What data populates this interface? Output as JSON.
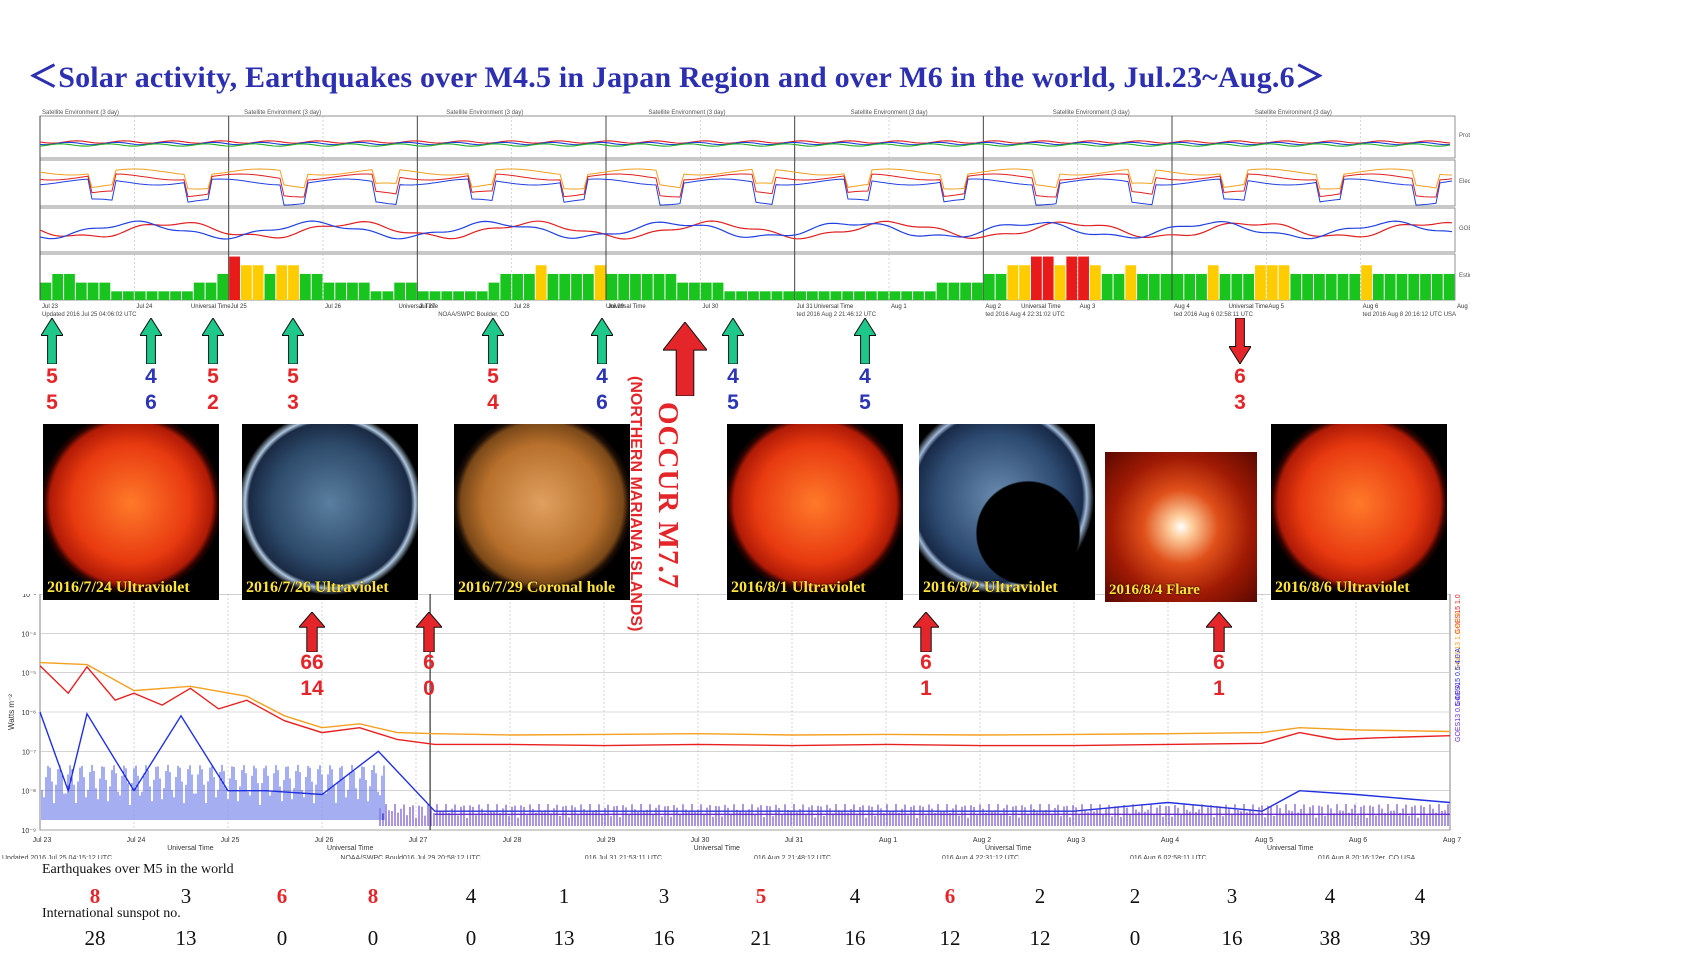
{
  "title": "＜Solar activity, Earthquakes over M4.5 in Japan Region and over M6 in the world, Jul.23~Aug.6＞",
  "chart_data": [
    {
      "type": "line",
      "panel": "GOES satellite environment (3 day) composite",
      "header_labels": [
        "Satellite Environment (3 day)",
        "Satellite Environment (3 day)",
        "Satellite Environment (3 day)",
        "Satellite Environment (3 day)",
        "Satellite Environment (3 day)",
        "Satellite Environment (3 day)",
        "Satellite Environment (3 day)"
      ],
      "right_labels": [
        "Proton Flux",
        "Electron Flux",
        "GOES Hp",
        "Estimated Kp"
      ],
      "x_ticks": [
        "Jul 23",
        "Jul 24",
        "Jul 25",
        "Jul 26",
        "Jul 27",
        "Jul 28",
        "Jul 29",
        "Jul 30",
        "Jul 31",
        "Aug 1",
        "Aug 2",
        "Aug 3",
        "Aug 4",
        "Aug 5",
        "Aug 6",
        "Aug 7"
      ],
      "axis_text": [
        "Universal Time",
        "Universal Time",
        "Universal Time",
        "Universal Time",
        "Universal Time",
        "Universal Time"
      ],
      "updated_labels": [
        "Updated 2016 Jul 25 04:06:02 UTC",
        "NOAA/SWPC Boulder, CO",
        "ted 2016 Aug  2 21:46:12 UTC",
        "ted 2016 Aug  4 22:31:02 UTC",
        "ted 2016 Aug  6 02:58:11 UTC",
        "ted 2016 Aug  8 20:16:12 UTC USA"
      ],
      "kp_index": {
        "x_start": "Jul 23",
        "interval_hours": 3,
        "values": [
          2,
          3,
          3,
          2,
          2,
          2,
          1,
          1,
          1,
          1,
          1,
          1,
          1,
          2,
          2,
          3,
          5,
          4,
          4,
          3,
          4,
          4,
          3,
          3,
          2,
          2,
          2,
          2,
          1,
          1,
          2,
          2,
          1,
          1,
          1,
          1,
          1,
          1,
          2,
          3,
          3,
          3,
          4,
          3,
          3,
          3,
          3,
          4,
          3,
          3,
          3,
          3,
          3,
          3,
          2,
          2,
          2,
          2,
          1,
          1,
          1,
          1,
          1,
          1,
          1,
          1,
          1,
          1,
          1,
          1,
          1,
          1,
          1,
          1,
          1,
          1,
          2,
          2,
          2,
          2,
          3,
          3,
          4,
          4,
          5,
          5,
          4,
          5,
          5,
          4,
          3,
          3,
          4,
          3,
          3,
          3,
          3,
          3,
          3,
          4,
          3,
          3,
          3,
          4,
          4,
          4,
          3,
          3,
          3,
          3,
          3,
          3,
          4,
          3,
          3,
          3,
          3,
          3,
          3,
          3
        ]
      },
      "kp_colors": {
        "quiet": "#19c41e",
        "active": "#ffcc00",
        "storm": "#e81a1a"
      }
    },
    {
      "type": "line",
      "panel": "GOES Xray Flux (1-minute data)",
      "ylabel": "Watts m⁻²",
      "y_scale": "log",
      "ylim": [
        1e-09,
        0.001
      ],
      "y_ticks": [
        "10⁻³",
        "10⁻⁴",
        "10⁻⁵",
        "10⁻⁶",
        "10⁻⁷",
        "10⁻⁸",
        "10⁻⁹"
      ],
      "x_ticks": [
        "Jul 23",
        "Jul 24",
        "Jul 25",
        "Jul 26",
        "Jul 27",
        "Jul 28",
        "Jul 29",
        "Jul 30",
        "Jul 31",
        "Aug 1",
        "Aug 2",
        "Aug 3",
        "Aug 4",
        "Aug 5",
        "Aug 6",
        "Aug 7"
      ],
      "axis_text": [
        "Universal Time",
        "Universal Time",
        "Universal Time",
        "Universal Time",
        "Universal Time"
      ],
      "updated_labels": [
        "Updated 2016 Jul 25 04:15:12 UTC",
        "NOAA/SWPC Bould016 Jul 29 20:58:12 UTC",
        "016 Jul 31 21:53:11 UTC",
        "016 Aug  2 21:48:12 UTC",
        "016 Aug  4 22:31:12 UTC",
        "016 Aug  6 02:58:11 UTC",
        "016 Aug  8 20:16:12er, CO USA"
      ],
      "series": [
        {
          "name": "GOES15 1.0-8.0 A",
          "color": "#e82020",
          "x_days": [
            0,
            0.3,
            0.5,
            0.8,
            1.0,
            1.3,
            1.6,
            1.9,
            2.2,
            2.6,
            3.0,
            3.4,
            3.8,
            4.2,
            5,
            6,
            7,
            8,
            9,
            10,
            11,
            12,
            13,
            13.4,
            13.8,
            14.2,
            15
          ],
          "y": [
            1.5e-05,
            3e-06,
            1.4e-05,
            2e-06,
            3e-06,
            1.5e-06,
            4e-06,
            1.2e-06,
            2e-06,
            6e-07,
            3e-07,
            4e-07,
            2e-07,
            1.5e-07,
            1.5e-07,
            1.4e-07,
            1.5e-07,
            1.4e-07,
            1.5e-07,
            1.4e-07,
            1.4e-07,
            1.5e-07,
            1.6e-07,
            3e-07,
            2e-07,
            2.2e-07,
            2.5e-07
          ]
        },
        {
          "name": "GOES13 1.0-8.0 A",
          "color": "#f4a020",
          "x_days": [
            0,
            0.5,
            1.0,
            1.6,
            2.2,
            2.6,
            3.0,
            3.4,
            3.8,
            4.2,
            5,
            6,
            7,
            8,
            9,
            10,
            11,
            12,
            13,
            13.4,
            14,
            15
          ],
          "y": [
            1.8e-05,
            1.6e-05,
            3.5e-06,
            4.5e-06,
            2.5e-06,
            8e-07,
            4e-07,
            5e-07,
            3e-07,
            2.8e-07,
            2.6e-07,
            2.7e-07,
            2.8e-07,
            2.6e-07,
            2.7e-07,
            2.6e-07,
            2.7e-07,
            2.8e-07,
            3e-07,
            4e-07,
            3.5e-07,
            3.2e-07
          ]
        },
        {
          "name": "GOES15 0.5-4.0 A",
          "color": "#2030e0",
          "x_days": [
            0,
            0.3,
            0.5,
            1.0,
            1.5,
            2.0,
            2.4,
            3.0,
            3.6,
            4.2,
            5,
            6,
            7,
            8,
            9,
            10,
            11,
            12,
            13,
            13.4,
            14,
            15
          ],
          "y": [
            1e-06,
            1e-08,
            9e-07,
            1e-08,
            8e-07,
            1e-08,
            1e-08,
            8e-09,
            1e-07,
            3e-09,
            3e-09,
            3e-09,
            3e-09,
            3e-09,
            3e-09,
            3e-09,
            3e-09,
            5e-09,
            3e-09,
            1e-08,
            8e-09,
            5e-09
          ]
        },
        {
          "name": "GOES13 0.5-4.0 A",
          "color": "#6a2ad8",
          "x_days": [
            4.2,
            5,
            6,
            7,
            8,
            9,
            10,
            11,
            12,
            13,
            14,
            15
          ],
          "y": [
            2.5e-09,
            2.5e-09,
            2.5e-09,
            2.5e-09,
            2.5e-09,
            2.5e-09,
            2.5e-09,
            2.5e-09,
            2.5e-09,
            2.5e-09,
            2.5e-09,
            2.5e-09
          ]
        }
      ]
    }
  ],
  "earthquake_markers_japan": [
    {
      "mag": "5",
      "decimal": "5",
      "color": "red"
    },
    {
      "mag": "4",
      "decimal": "6",
      "color": "blue"
    },
    {
      "mag": "5",
      "decimal": "2",
      "color": "red"
    },
    {
      "mag": "5",
      "decimal": "3",
      "color": "red"
    },
    {
      "mag": "5",
      "decimal": "4",
      "color": "red"
    },
    {
      "mag": "4",
      "decimal": "6",
      "color": "blue"
    },
    {
      "mag": "4",
      "decimal": "5",
      "color": "blue"
    },
    {
      "mag": "4",
      "decimal": "5",
      "color": "blue"
    },
    {
      "mag": "6",
      "decimal": "3",
      "color": "red"
    }
  ],
  "earthquake_markers_world": [
    {
      "mag": "66",
      "decimal": "14"
    },
    {
      "mag": "6",
      "decimal": "0"
    },
    {
      "mag": "6",
      "decimal": "1"
    },
    {
      "mag": "6",
      "decimal": "1"
    }
  ],
  "big_event": {
    "main": "OCCUR M7.7",
    "sub": "(NORTHERN MARIANA ISLANDS)"
  },
  "photos": [
    {
      "label": "2016/7/24 Ultraviolet",
      "kind": "uv"
    },
    {
      "label": "2016/7/26 Ultraviolet",
      "kind": "uv_blue"
    },
    {
      "label": "2016/7/29 Coronal hole",
      "kind": "coronal"
    },
    {
      "label": "2016/8/1 Ultraviolet",
      "kind": "uv"
    },
    {
      "label": "2016/8/2 Ultraviolet",
      "kind": "uv_blue_eclipse"
    },
    {
      "label": "2016/8/4 Flare",
      "kind": "coronagraph"
    },
    {
      "label": "2016/8/6 Ultraviolet",
      "kind": "uv"
    }
  ],
  "tables": {
    "earthquakes_label": "Earthquakes over M5 in the world",
    "earthquakes": [
      "8",
      "3",
      "6",
      "8",
      "4",
      "1",
      "3",
      "5",
      "4",
      "6",
      "2",
      "2",
      "3",
      "4",
      "4"
    ],
    "earthquakes_highlight": [
      true,
      false,
      true,
      true,
      false,
      false,
      false,
      true,
      false,
      true,
      false,
      false,
      false,
      false,
      false
    ],
    "sunspot_label": "International sunspot no.",
    "sunspots": [
      "28",
      "13",
      "0",
      "0",
      "0",
      "13",
      "16",
      "21",
      "16",
      "12",
      "12",
      "0",
      "16",
      "38",
      "39"
    ]
  }
}
